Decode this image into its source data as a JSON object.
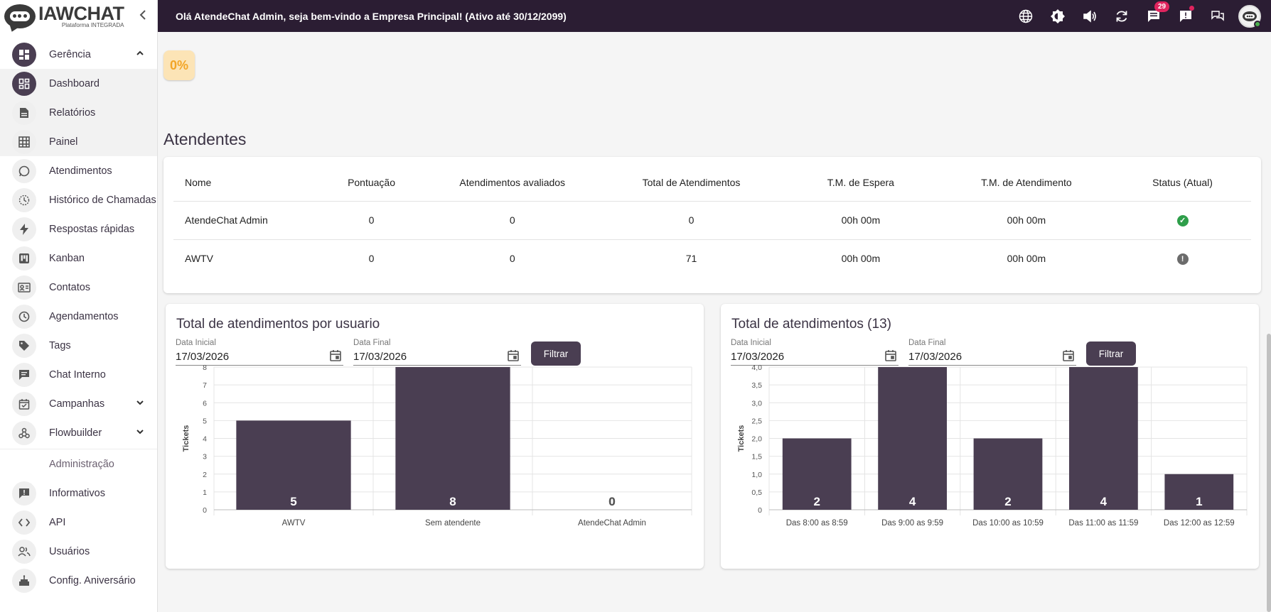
{
  "app": {
    "logo_title": "IAWCHAT",
    "logo_subtitle": "Plataforma INTEGRADA",
    "greeting": "Olá AtendeChat Admin, seja bem-vindo a Empresa Principal! (Ativo até 30/12/2099)",
    "notification_count": "29"
  },
  "sidebar": {
    "group_gerencia": "Gerência",
    "items": [
      {
        "label": "Dashboard"
      },
      {
        "label": "Relatórios"
      },
      {
        "label": "Painel"
      },
      {
        "label": "Atendimentos"
      },
      {
        "label": "Histórico de Chamadas"
      },
      {
        "label": "Respostas rápidas"
      },
      {
        "label": "Kanban"
      },
      {
        "label": "Contatos"
      },
      {
        "label": "Agendamentos"
      },
      {
        "label": "Tags"
      },
      {
        "label": "Chat Interno"
      },
      {
        "label": "Campanhas"
      },
      {
        "label": "Flowbuilder"
      }
    ],
    "section_admin": "Administração",
    "admin_items": [
      {
        "label": "Informativos"
      },
      {
        "label": "API"
      },
      {
        "label": "Usuários"
      },
      {
        "label": "Config. Aniversário"
      }
    ]
  },
  "main": {
    "percent_chip": "0%",
    "atendentes_title": "Atendentes",
    "table": {
      "headers": [
        "Nome",
        "Pontuação",
        "Atendimentos avaliados",
        "Total de Atendimentos",
        "T.M. de Espera",
        "T.M. de Atendimento",
        "Status (Atual)"
      ],
      "rows": [
        {
          "nome": "AtendeChat Admin",
          "pontuacao": "0",
          "avaliados": "0",
          "total": "0",
          "espera": "00h 00m",
          "atendimento": "00h 00m",
          "status": "online"
        },
        {
          "nome": "AWTV",
          "pontuacao": "0",
          "avaliados": "0",
          "total": "71",
          "espera": "00h 00m",
          "atendimento": "00h 00m",
          "status": "offline"
        }
      ]
    },
    "chart1_panel": {
      "title": "Total de atendimentos por usuario",
      "date_start_label": "Data Inicial",
      "date_start_value": "17/03/2026",
      "date_end_label": "Data Final",
      "date_end_value": "17/03/2026",
      "filter_label": "Filtrar"
    },
    "chart2_panel": {
      "title": "Total de atendimentos (13)",
      "date_start_label": "Data Inicial",
      "date_start_value": "17/03/2026",
      "date_end_label": "Data Final",
      "date_end_value": "17/03/2026",
      "filter_label": "Filtrar"
    }
  },
  "colors": {
    "bar": "#4a3e52",
    "topbar": "#2b1d33",
    "status_online": "#2e9e4a",
    "status_offline": "#6b6b6b"
  },
  "chart_data": [
    {
      "type": "bar",
      "title": "Total de atendimentos por usuario",
      "categories": [
        "AWTV",
        "Sem atendente",
        "AtendeChat Admin"
      ],
      "values": [
        5,
        8,
        0
      ],
      "xlabel": "",
      "ylabel": "Tickets",
      "ylim": [
        0,
        8
      ],
      "yticks": [
        "0",
        "1",
        "2",
        "3",
        "4",
        "5",
        "6",
        "7",
        "8"
      ]
    },
    {
      "type": "bar",
      "title": "Total de atendimentos (13)",
      "categories": [
        "Das 8:00 as 8:59",
        "Das 9:00 as 9:59",
        "Das 10:00 as 10:59",
        "Das 11:00 as 11:59",
        "Das 12:00 as 12:59"
      ],
      "values": [
        2,
        4,
        2,
        4,
        1
      ],
      "xlabel": "",
      "ylabel": "Tickets",
      "ylim": [
        0,
        4
      ],
      "yticks": [
        "0",
        "0,5",
        "1,0",
        "1,5",
        "2,0",
        "2,5",
        "3,0",
        "3,5",
        "4,0"
      ]
    }
  ]
}
